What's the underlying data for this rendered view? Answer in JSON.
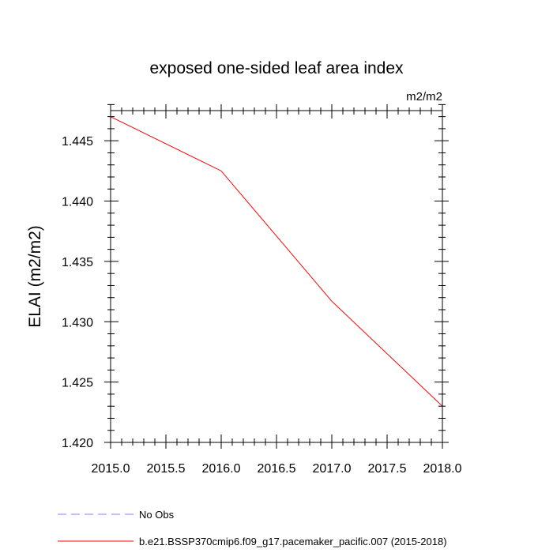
{
  "chart_data": {
    "type": "line",
    "title": "exposed one-sided leaf area index",
    "units_label": "m2/m2",
    "xlabel": "",
    "ylabel": "ELAI  (m2/m2)",
    "xlim": [
      2015.0,
      2018.0
    ],
    "ylim": [
      1.42,
      1.4475
    ],
    "x_ticks": [
      2015.0,
      2015.5,
      2016.0,
      2016.5,
      2017.0,
      2017.5,
      2018.0
    ],
    "x_tick_labels": [
      "2015.0",
      "2015.5",
      "2016.0",
      "2016.5",
      "2017.0",
      "2017.5",
      "2018.0"
    ],
    "y_ticks": [
      1.42,
      1.425,
      1.43,
      1.435,
      1.44,
      1.445
    ],
    "y_tick_labels": [
      "1.420",
      "1.425",
      "1.430",
      "1.435",
      "1.440",
      "1.445"
    ],
    "x_minor_step": 0.1,
    "y_minor_step": 0.001,
    "grid": false,
    "series": [
      {
        "name": "b.e21.BSSP370cmip6.f09_g17.pacemaker_pacific.007 (2015-2018)",
        "color": "#ff0000",
        "dash": "solid",
        "x": [
          2015.0,
          2016.0,
          2017.0,
          2018.0
        ],
        "y": [
          1.447,
          1.4425,
          1.4317,
          1.423
        ]
      }
    ],
    "legend": {
      "placement": "bottom-left",
      "entries": [
        {
          "label": "No Obs",
          "color": "#8080ff",
          "dash": "dashed"
        },
        {
          "label": "b.e21.BSSP370cmip6.f09_g17.pacemaker_pacific.007 (2015-2018)",
          "color": "#ff0000",
          "dash": "solid"
        }
      ]
    }
  }
}
